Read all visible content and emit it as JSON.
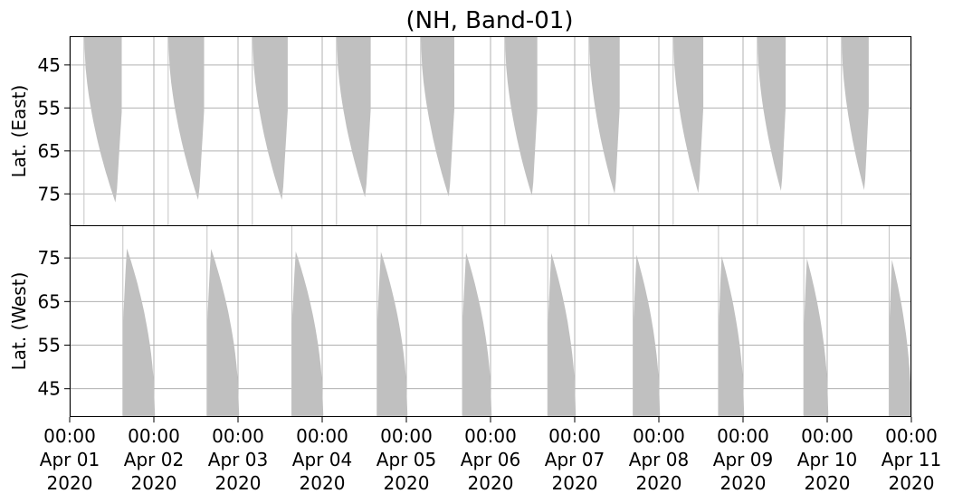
{
  "chart_data": {
    "type": "area",
    "title": "(NH, Band-01)",
    "xlim": [
      "2020-04-01T00:00",
      "2020-04-11T00:00"
    ],
    "xticks": [
      {
        "value": "2020-04-01T00:00",
        "time": "00:00",
        "date": "Apr 01",
        "year": "2020"
      },
      {
        "value": "2020-04-02T00:00",
        "time": "00:00",
        "date": "Apr 02",
        "year": "2020"
      },
      {
        "value": "2020-04-03T00:00",
        "time": "00:00",
        "date": "Apr 03",
        "year": "2020"
      },
      {
        "value": "2020-04-04T00:00",
        "time": "00:00",
        "date": "Apr 04",
        "year": "2020"
      },
      {
        "value": "2020-04-05T00:00",
        "time": "00:00",
        "date": "Apr 05",
        "year": "2020"
      },
      {
        "value": "2020-04-06T00:00",
        "time": "00:00",
        "date": "Apr 06",
        "year": "2020"
      },
      {
        "value": "2020-04-07T00:00",
        "time": "00:00",
        "date": "Apr 07",
        "year": "2020"
      },
      {
        "value": "2020-04-08T00:00",
        "time": "00:00",
        "date": "Apr 08",
        "year": "2020"
      },
      {
        "value": "2020-04-09T00:00",
        "time": "00:00",
        "date": "Apr 09",
        "year": "2020"
      },
      {
        "value": "2020-04-10T00:00",
        "time": "00:00",
        "date": "Apr 10",
        "year": "2020"
      },
      {
        "value": "2020-04-11T00:00",
        "time": "00:00",
        "date": "Apr 11",
        "year": "2020"
      }
    ],
    "panels": [
      {
        "ylabel": "Lat. (East)",
        "ylim": [
          38.3,
          82.3
        ],
        "inverted": true,
        "yticks": [
          45,
          55,
          65,
          75
        ],
        "grid": true,
        "swaths": [
          {
            "start": "2020-04-01T04:05",
            "end": "2020-04-01T14:50",
            "lat_min": 77.4
          },
          {
            "start": "2020-04-02T04:05",
            "end": "2020-04-02T14:20",
            "lat_min": 76.8
          },
          {
            "start": "2020-04-03T04:05",
            "end": "2020-04-03T14:10",
            "lat_min": 76.8
          },
          {
            "start": "2020-04-04T04:05",
            "end": "2020-04-04T13:50",
            "lat_min": 76.2
          },
          {
            "start": "2020-04-05T04:05",
            "end": "2020-04-05T13:40",
            "lat_min": 76.0
          },
          {
            "start": "2020-04-06T04:05",
            "end": "2020-04-06T13:20",
            "lat_min": 75.8
          },
          {
            "start": "2020-04-07T04:05",
            "end": "2020-04-07T12:50",
            "lat_min": 75.4
          },
          {
            "start": "2020-04-08T04:05",
            "end": "2020-04-08T12:40",
            "lat_min": 75.2
          },
          {
            "start": "2020-04-09T04:05",
            "end": "2020-04-09T12:10",
            "lat_min": 74.7
          },
          {
            "start": "2020-04-10T04:05",
            "end": "2020-04-10T11:50",
            "lat_min": 74.5
          }
        ]
      },
      {
        "ylabel": "Lat. (West)",
        "ylim": [
          38.5,
          82.5
        ],
        "inverted": false,
        "yticks": [
          45,
          55,
          65,
          75
        ],
        "grid": true,
        "swaths": [
          {
            "start": "2020-03-31T22:55",
            "end": "2020-04-01T00:20",
            "lat_max": 48.0
          },
          {
            "start": "2020-04-01T15:10",
            "end": "2020-04-02T00:20",
            "lat_max": 77.3
          },
          {
            "start": "2020-04-02T15:10",
            "end": "2020-04-03T00:20",
            "lat_max": 77.2
          },
          {
            "start": "2020-04-03T15:20",
            "end": "2020-04-04T00:20",
            "lat_max": 76.6
          },
          {
            "start": "2020-04-04T15:40",
            "end": "2020-04-05T00:20",
            "lat_max": 76.5
          },
          {
            "start": "2020-04-05T16:00",
            "end": "2020-04-06T00:20",
            "lat_max": 76.3
          },
          {
            "start": "2020-04-06T16:20",
            "end": "2020-04-07T00:20",
            "lat_max": 76.2
          },
          {
            "start": "2020-04-07T16:40",
            "end": "2020-04-08T00:20",
            "lat_max": 75.8
          },
          {
            "start": "2020-04-08T17:00",
            "end": "2020-04-09T00:20",
            "lat_max": 75.5
          },
          {
            "start": "2020-04-09T17:20",
            "end": "2020-04-10T00:20",
            "lat_max": 75.0
          },
          {
            "start": "2020-04-10T17:40",
            "end": "2020-04-11T00:20",
            "lat_max": 74.7
          }
        ]
      }
    ],
    "series_color": "#c0c0c0"
  }
}
